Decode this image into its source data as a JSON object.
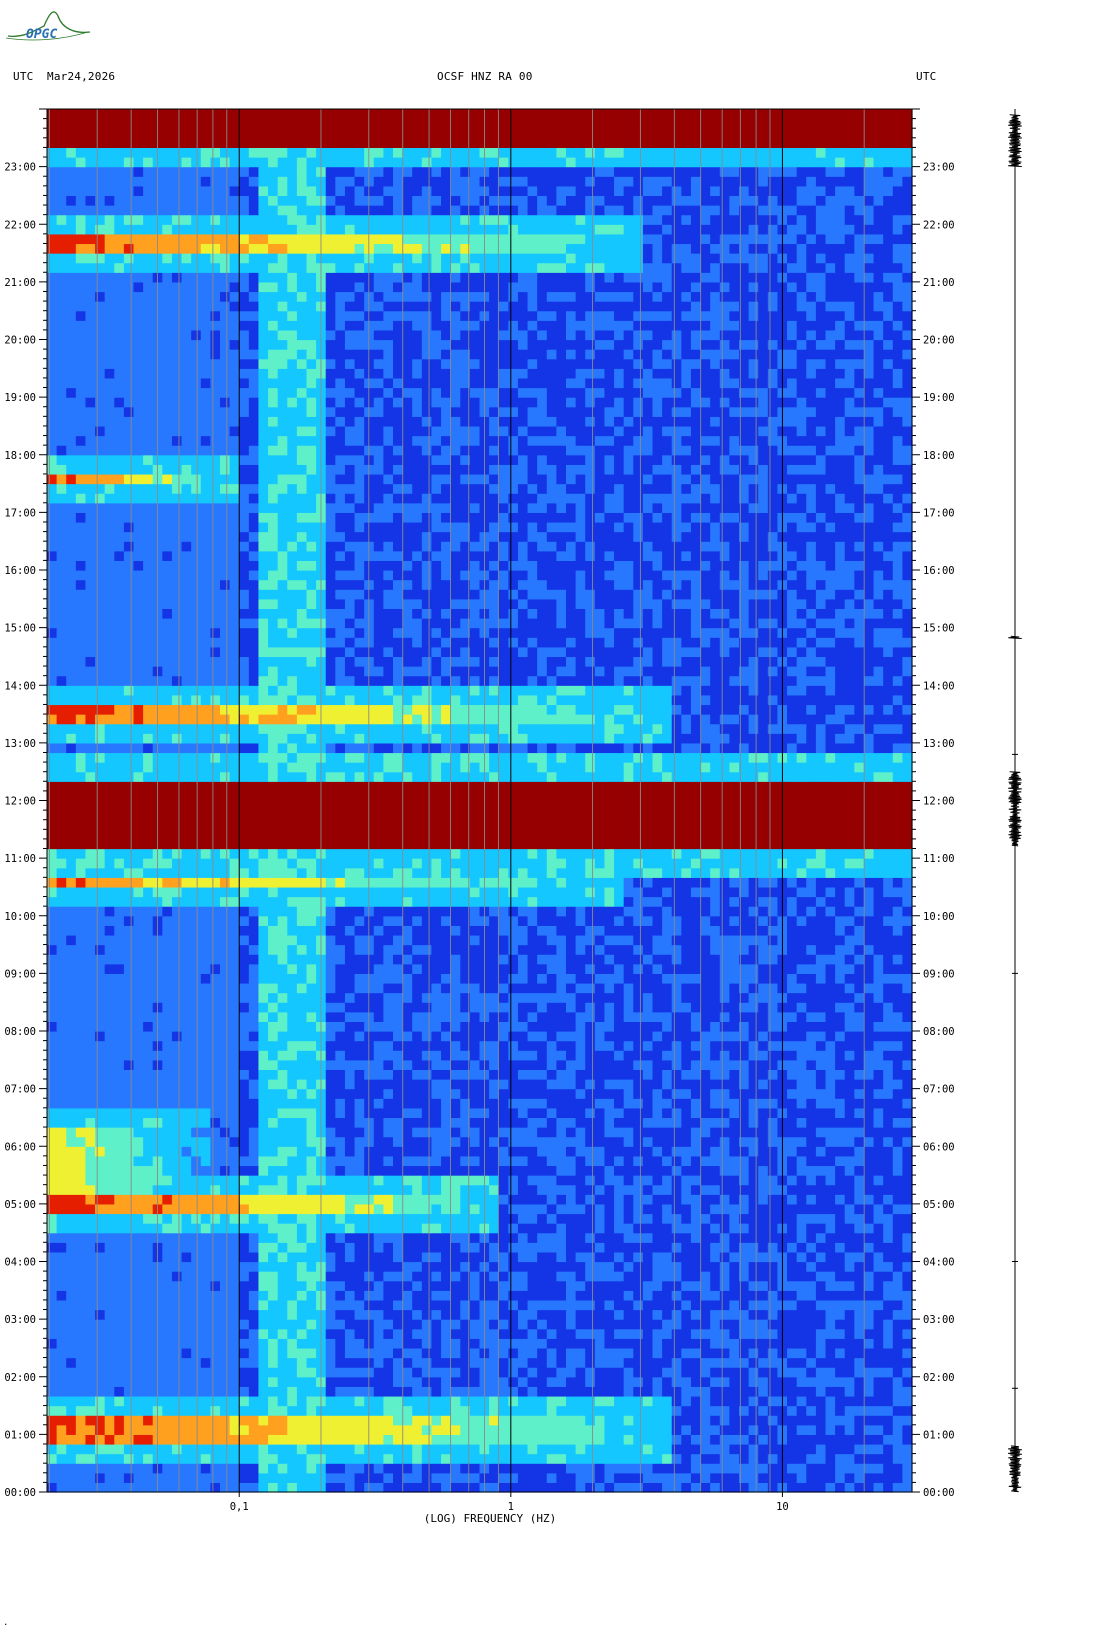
{
  "header": {
    "left_tz": "UTC",
    "date": "Mar24,2026",
    "station": "OCSF HNZ RA 00",
    "right_tz": "UTC"
  },
  "logo": {
    "text": "OPGC"
  },
  "footer": {
    "mark": "."
  },
  "chart_data": {
    "type": "heatmap",
    "xlabel": "(LOG) FREQUENCY (HZ)",
    "xscale": "log",
    "xlim": [
      0.0196,
      30
    ],
    "xticks": [
      {
        "value": 0.1,
        "label": "0,1"
      },
      {
        "value": 1,
        "label": "1"
      },
      {
        "value": 10,
        "label": "10"
      }
    ],
    "ylim_hours": [
      0,
      24
    ],
    "yticks": [
      "00:00",
      "01:00",
      "02:00",
      "03:00",
      "04:00",
      "05:00",
      "06:00",
      "07:00",
      "08:00",
      "09:00",
      "10:00",
      "11:00",
      "12:00",
      "13:00",
      "14:00",
      "15:00",
      "16:00",
      "17:00",
      "18:00",
      "19:00",
      "20:00",
      "21:00",
      "22:00",
      "23:00"
    ],
    "colormap": [
      "#00008b",
      "#1435e6",
      "#2878ff",
      "#14c8ff",
      "#5ef0c8",
      "#f0f032",
      "#ffa01e",
      "#e61e00",
      "#960000"
    ],
    "background_level": 0.18,
    "microseism_band": {
      "f_low": 0.12,
      "f_high": 0.2,
      "level": 0.42
    },
    "events": [
      {
        "start": 23.4,
        "end": 24.0,
        "f_max": 30,
        "level": 1.0
      },
      {
        "start": 21.55,
        "end": 21.75,
        "f_max": 3.0,
        "level": 0.85
      },
      {
        "start": 17.58,
        "end": 17.65,
        "f_max": 0.1,
        "level": 0.85
      },
      {
        "start": 13.3,
        "end": 13.7,
        "f_max": 4.0,
        "level": 0.85
      },
      {
        "start": 11.1,
        "end": 12.4,
        "f_max": 30,
        "level": 1.0
      },
      {
        "start": 10.45,
        "end": 10.7,
        "f_max": 2.5,
        "level": 0.8
      },
      {
        "start": 4.9,
        "end": 5.1,
        "f_max": 0.9,
        "level": 0.9
      },
      {
        "start": 5.1,
        "end": 6.3,
        "f_max": 0.08,
        "level": 0.65
      },
      {
        "start": 0.85,
        "end": 1.3,
        "f_max": 4.0,
        "level": 0.85
      }
    ],
    "trace_bursts_hours": [
      {
        "start": 23.0,
        "end": 23.9
      },
      {
        "start": 11.2,
        "end": 12.5
      },
      {
        "start": 14.8,
        "end": 14.85
      },
      {
        "start": 0.0,
        "end": 0.8
      }
    ]
  }
}
